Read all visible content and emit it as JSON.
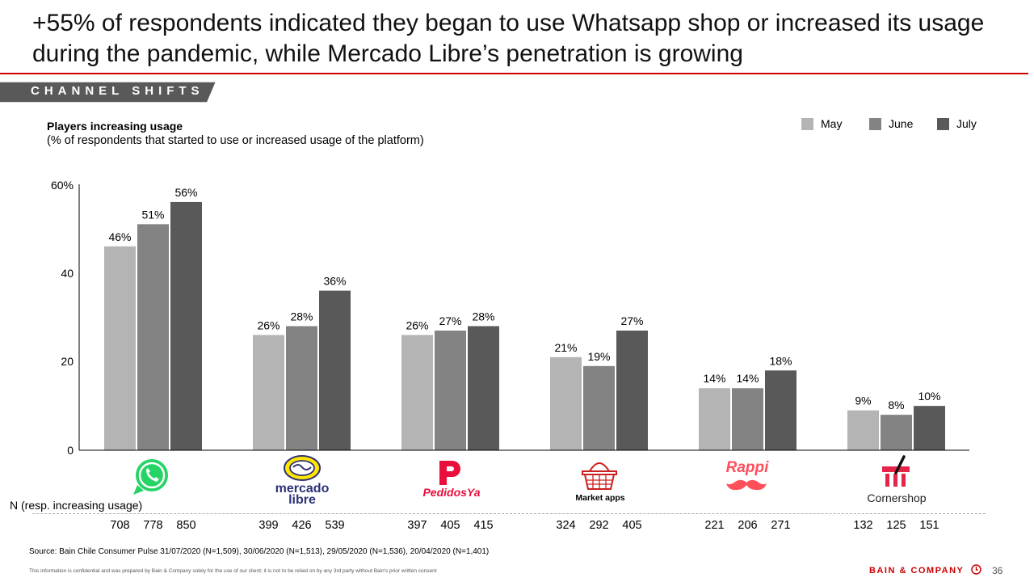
{
  "header": {
    "title": "+55% of respondents indicated they began to use Whatsapp shop or increased its usage during the pandemic, while Mercado Libre’s penetration is growing",
    "section": "CHANNEL SHIFTS"
  },
  "chart_header": {
    "title": "Players increasing usage",
    "subtitle": "(% of respondents that started to use or increased usage of the platform)"
  },
  "legend": [
    {
      "label": "May",
      "color": "#b4b4b4"
    },
    {
      "label": "June",
      "color": "#838383"
    },
    {
      "label": "July",
      "color": "#595959"
    }
  ],
  "chart_data": {
    "type": "bar",
    "title": "Players increasing usage",
    "ylabel": "% of respondents that started to use or increased usage of the platform",
    "ylim": [
      0,
      60
    ],
    "yticks": [
      "0",
      "20",
      "40",
      "60%"
    ],
    "categories": [
      "Whatsapp",
      "Mercado Libre",
      "PedidosYa",
      "Market apps",
      "Rappi",
      "Cornershop"
    ],
    "series": [
      {
        "name": "May",
        "values": [
          46,
          26,
          26,
          21,
          14,
          9
        ],
        "labels": [
          "46%",
          "26%",
          "26%",
          "21%",
          "14%",
          "9%"
        ]
      },
      {
        "name": "June",
        "values": [
          51,
          28,
          27,
          19,
          14,
          8
        ],
        "labels": [
          "51%",
          "28%",
          "27%",
          "19%",
          "14%",
          "8%"
        ]
      },
      {
        "name": "July",
        "values": [
          56,
          36,
          28,
          27,
          18,
          10
        ],
        "labels": [
          "56%",
          "36%",
          "28%",
          "27%",
          "18%",
          "10%"
        ]
      }
    ]
  },
  "logos": {
    "mercado": "mercado",
    "libre": "libre",
    "pedidosya": "PedidosYa",
    "market_apps": "Market apps",
    "rappi": "Rappi",
    "cornershop": "Cornershop"
  },
  "respondents": {
    "caption": "N (resp. increasing usage)",
    "groups": [
      [
        "708",
        "778",
        "850"
      ],
      [
        "399",
        "426",
        "539"
      ],
      [
        "397",
        "405",
        "415"
      ],
      [
        "324",
        "292",
        "405"
      ],
      [
        "221",
        "206",
        "271"
      ],
      [
        "132",
        "125",
        "151"
      ]
    ]
  },
  "footer": {
    "source": "Source: Bain Chile Consumer Pulse 31/07/2020 (N=1,509), 30/06/2020 (N=1,513), 29/05/2020 (N=1,536), 20/04/2020 (N=1,401)",
    "confidential": "This information is confidential and was prepared by Bain & Company solely for the use of our client; it is not to be relied on by any 3rd party without Bain's prior written consent",
    "brand": "BAIN & COMPANY",
    "page": "36"
  }
}
